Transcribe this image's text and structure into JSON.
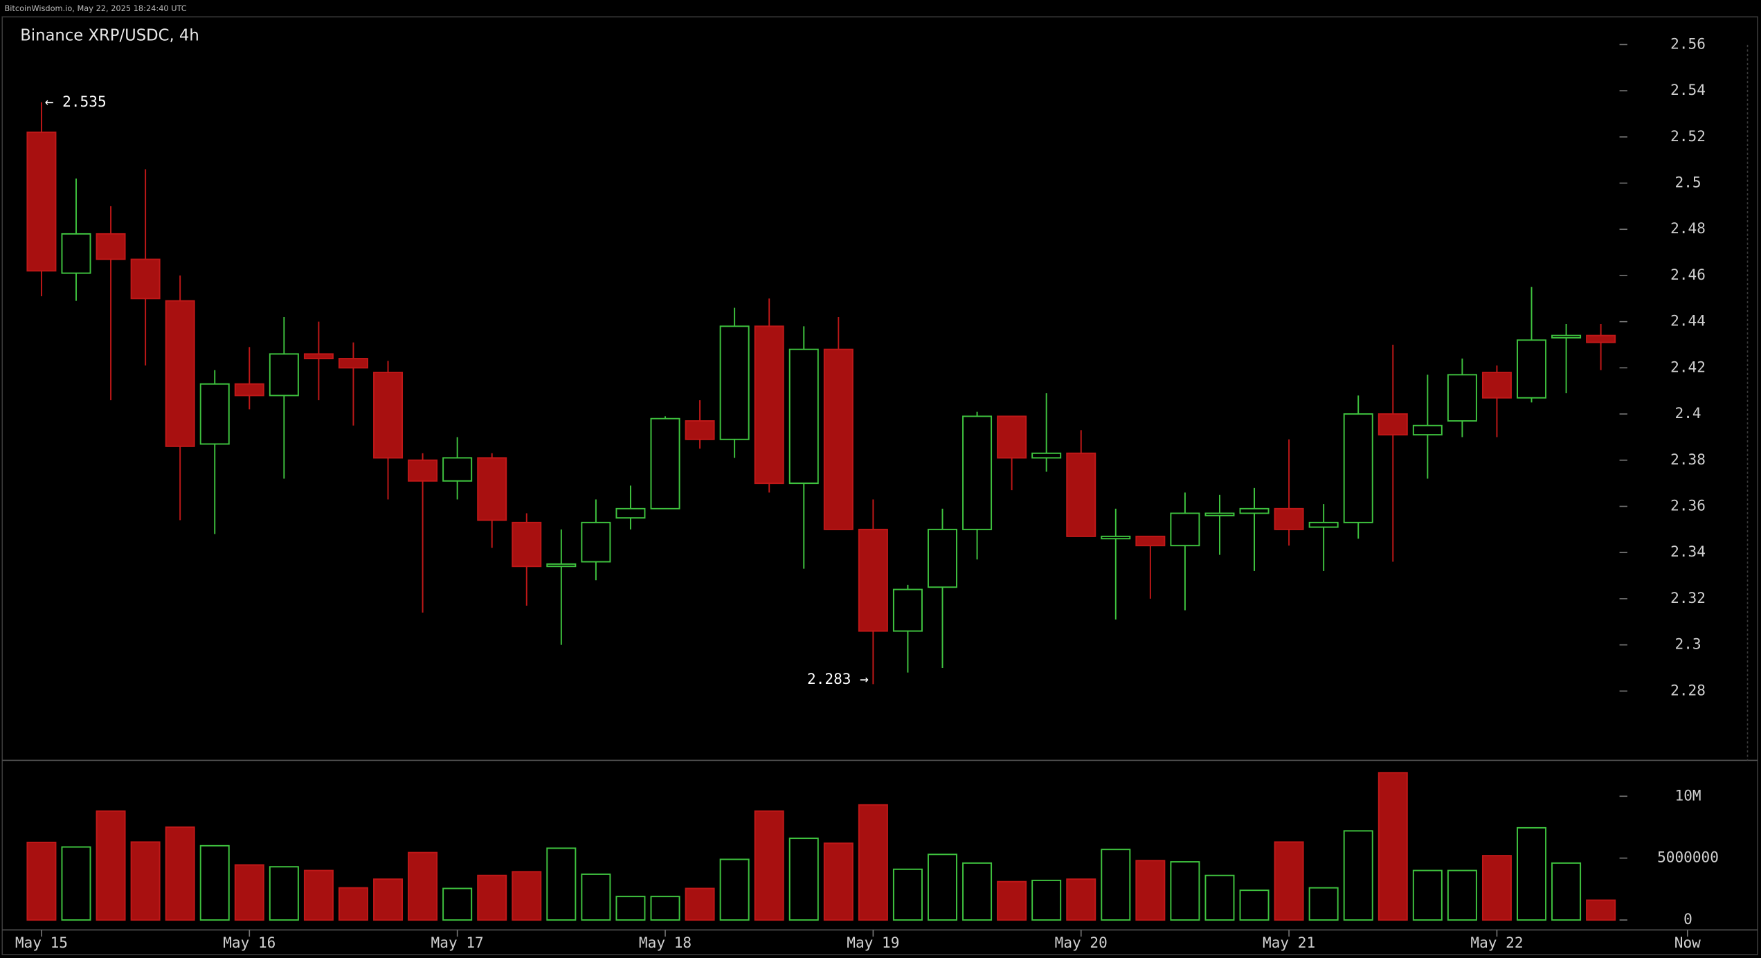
{
  "chart_data": {
    "type": "candlestick",
    "source": "BitcoinWisdom.io, May 22, 2025 18:24:40 UTC",
    "title": "Binance XRP/USDC, 4h",
    "annotations": [
      "← 2.535",
      "2.283 →"
    ],
    "up_color": "#3fc33f",
    "down_color": "#a81010",
    "xlim": [
      -1.1,
      45.7
    ],
    "xticks": [
      {
        "value": 0,
        "label": "May 15"
      },
      {
        "value": 6,
        "label": "May 16"
      },
      {
        "value": 12,
        "label": "May 17"
      },
      {
        "value": 18,
        "label": "May 18"
      },
      {
        "value": 24,
        "label": "May 19"
      },
      {
        "value": 30,
        "label": "May 20"
      },
      {
        "value": 36,
        "label": "May 21"
      },
      {
        "value": 42,
        "label": "May 22"
      },
      {
        "value": 47.5,
        "label": "Now"
      }
    ],
    "ylim": [
      2.25,
      2.572
    ],
    "yticks": [
      2.28,
      2.3,
      2.32,
      2.34,
      2.36,
      2.38,
      2.4,
      2.42,
      2.44,
      2.46,
      2.48,
      2.5,
      2.52,
      2.54,
      2.56
    ],
    "open": [
      2.522,
      2.461,
      2.478,
      2.467,
      2.449,
      2.387,
      2.413,
      2.408,
      2.426,
      2.424,
      2.418,
      2.38,
      2.371,
      2.381,
      2.353,
      2.334,
      2.336,
      2.355,
      2.359,
      2.397,
      2.389,
      2.438,
      2.37,
      2.428,
      2.35,
      2.306,
      2.325,
      2.35,
      2.399,
      2.381,
      2.383,
      2.346,
      2.347,
      2.343,
      2.356,
      2.357,
      2.359,
      2.351,
      2.353,
      2.4,
      2.391,
      2.397,
      2.418,
      2.407,
      2.433,
      2.434
    ],
    "high": [
      2.535,
      2.502,
      2.49,
      2.506,
      2.46,
      2.419,
      2.429,
      2.442,
      2.44,
      2.431,
      2.423,
      2.383,
      2.39,
      2.383,
      2.357,
      2.35,
      2.363,
      2.369,
      2.399,
      2.406,
      2.446,
      2.45,
      2.438,
      2.442,
      2.363,
      2.326,
      2.359,
      2.401,
      2.399,
      2.409,
      2.393,
      2.359,
      2.347,
      2.366,
      2.365,
      2.368,
      2.389,
      2.361,
      2.408,
      2.43,
      2.417,
      2.424,
      2.421,
      2.455,
      2.439,
      2.439
    ],
    "low": [
      2.451,
      2.449,
      2.406,
      2.421,
      2.354,
      2.348,
      2.402,
      2.372,
      2.406,
      2.395,
      2.363,
      2.314,
      2.363,
      2.342,
      2.317,
      2.3,
      2.328,
      2.35,
      2.359,
      2.385,
      2.381,
      2.366,
      2.333,
      2.35,
      2.283,
      2.288,
      2.29,
      2.337,
      2.367,
      2.375,
      2.347,
      2.311,
      2.32,
      2.315,
      2.339,
      2.332,
      2.343,
      2.332,
      2.346,
      2.336,
      2.372,
      2.39,
      2.39,
      2.405,
      2.409,
      2.419
    ],
    "close": [
      2.462,
      2.478,
      2.467,
      2.45,
      2.386,
      2.413,
      2.408,
      2.426,
      2.424,
      2.42,
      2.381,
      2.371,
      2.381,
      2.354,
      2.334,
      2.335,
      2.353,
      2.359,
      2.398,
      2.389,
      2.438,
      2.37,
      2.428,
      2.35,
      2.306,
      2.324,
      2.35,
      2.399,
      2.381,
      2.383,
      2.347,
      2.347,
      2.343,
      2.357,
      2.357,
      2.359,
      2.35,
      2.353,
      2.4,
      2.391,
      2.395,
      2.417,
      2.407,
      2.432,
      2.434,
      2.431
    ],
    "volume": [
      6270000,
      5900000,
      8800000,
      6300000,
      7500000,
      6000000,
      4450000,
      4300000,
      4000000,
      2600000,
      3300000,
      5450000,
      2550000,
      3600000,
      3900000,
      5800000,
      3700000,
      1900000,
      1900000,
      2550000,
      4900000,
      8800000,
      6600000,
      6200000,
      9300000,
      4100000,
      5300000,
      4600000,
      3100000,
      3200000,
      3300000,
      5700000,
      4800000,
      4700000,
      3600000,
      2400000,
      6300000,
      2600000,
      7200000,
      11900000,
      4000000,
      4000000,
      5200000,
      7450000,
      4600000,
      1600000
    ],
    "volume_ylim": [
      -800000,
      12900000
    ],
    "volume_yticks": [
      0,
      5000000,
      {
        "value": 10000000,
        "label": "10M"
      }
    ]
  }
}
